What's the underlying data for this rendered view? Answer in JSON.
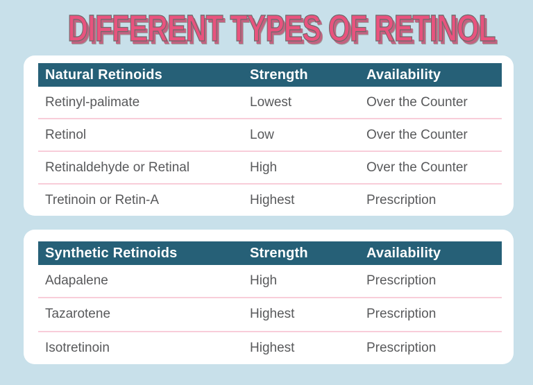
{
  "title": "DIFFERENT TYPES OF RETINOL",
  "colors": {
    "background": "#C8E0EA",
    "card_background": "#FFFFFF",
    "header_bar": "#266077",
    "header_text": "#FFFFFF",
    "row_text": "#58595B",
    "row_divider": "#F8CDD9",
    "title_pink": "#E8537E",
    "title_shadow": "#C26280",
    "title_outline": "#6A6A6A"
  },
  "tables": [
    {
      "headers": [
        "Natural Retinoids",
        "Strength",
        "Availability"
      ],
      "rows": [
        [
          "Retinyl-palimate",
          "Lowest",
          "Over the Counter"
        ],
        [
          "Retinol",
          "Low",
          "Over the Counter"
        ],
        [
          "Retinaldehyde or Retinal",
          "High",
          "Over the Counter"
        ],
        [
          "Tretinoin or Retin-A",
          "Highest",
          "Prescription"
        ]
      ]
    },
    {
      "headers": [
        "Synthetic Retinoids",
        "Strength",
        "Availability"
      ],
      "rows": [
        [
          "Adapalene",
          "High",
          "Prescription"
        ],
        [
          "Tazarotene",
          "Highest",
          "Prescription"
        ],
        [
          "Isotretinoin",
          "Highest",
          "Prescription"
        ]
      ]
    }
  ]
}
